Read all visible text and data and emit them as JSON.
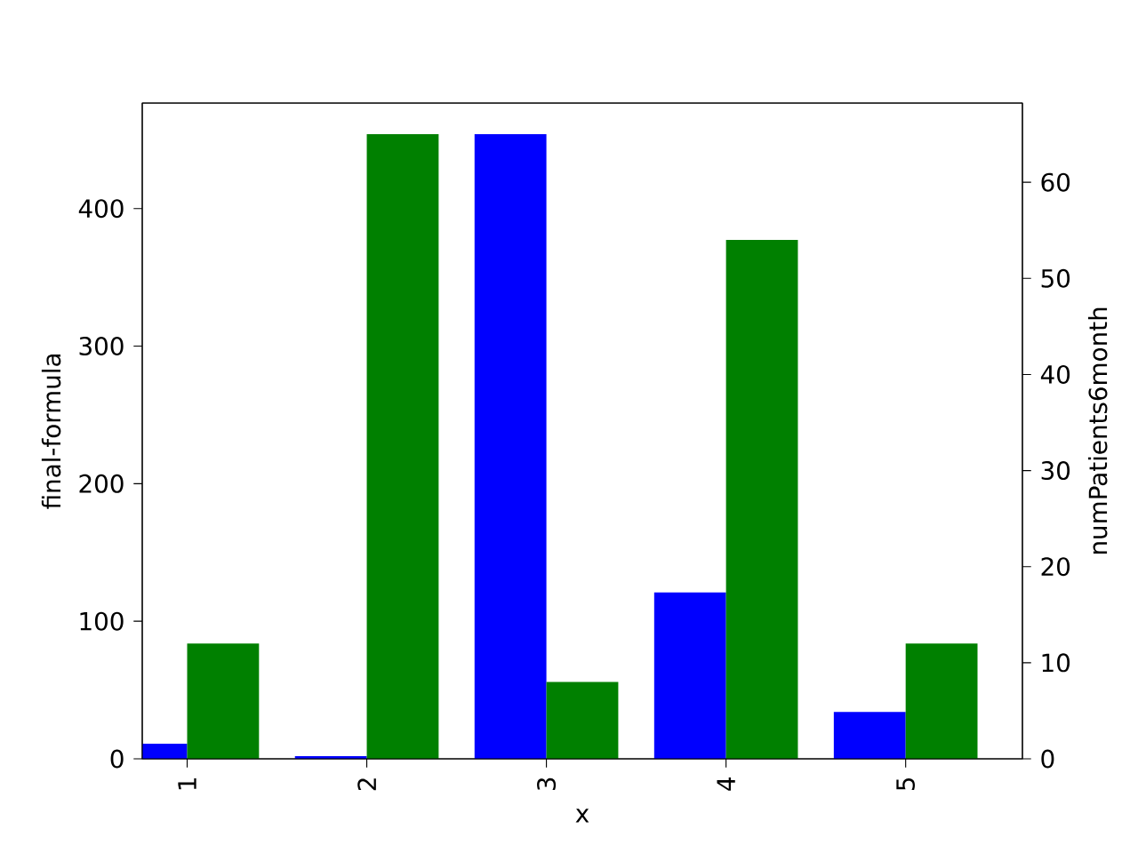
{
  "chart_data": {
    "type": "bar",
    "xlabel": "x",
    "ylabel": "final-formula",
    "y2label": "numPatients6month",
    "categories": [
      "1",
      "2",
      "3",
      "4",
      "5"
    ],
    "series": [
      {
        "color": "#0000ff",
        "values": [
          11,
          2,
          454,
          121,
          34
        ]
      },
      {
        "color": "#008000",
        "axis": "y2",
        "values": [
          12,
          65,
          8,
          54,
          12
        ]
      }
    ],
    "ylim": [
      0,
      476.7
    ],
    "yticks": [
      0,
      100,
      200,
      300,
      400
    ],
    "y2lim": [
      0,
      68.25
    ],
    "y2ticks": [
      0,
      10,
      20,
      30,
      40,
      50,
      60
    ]
  }
}
